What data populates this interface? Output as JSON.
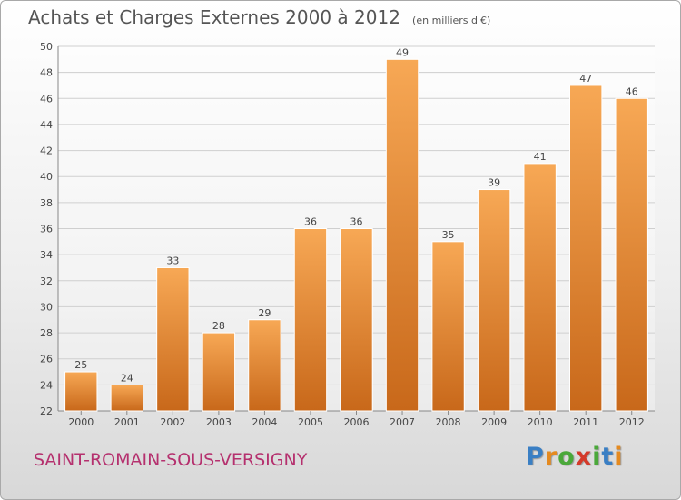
{
  "header": {
    "title": "Achats et Charges Externes 2000 à 2012",
    "unit": "(en milliers d'€)"
  },
  "footer": {
    "commune": "SAINT-ROMAIN-SOUS-VERSIGNY",
    "brand": "Proxiti",
    "brand_colors": [
      "#3a7fc4",
      "#e58a1f",
      "#4aa83a",
      "#d43a2a",
      "#4aa83a",
      "#3a7fc4",
      "#e58a1f"
    ]
  },
  "colors": {
    "bar_light": "#f7a855",
    "bar_dark": "#c8681a",
    "grid": "#cfcfcf",
    "axis": "#888888",
    "text": "#444444"
  },
  "chart_data": {
    "type": "bar",
    "title": "Achats et Charges Externes 2000 à 2012",
    "subtitle": "(en milliers d'€)",
    "categories": [
      "2000",
      "2001",
      "2002",
      "2003",
      "2004",
      "2005",
      "2006",
      "2007",
      "2008",
      "2009",
      "2010",
      "2011",
      "2012"
    ],
    "values": [
      25,
      24,
      33,
      28,
      29,
      36,
      36,
      49,
      35,
      39,
      41,
      47,
      46
    ],
    "ylim": [
      22,
      50
    ],
    "yticks": [
      22,
      24,
      26,
      28,
      30,
      32,
      34,
      36,
      38,
      40,
      42,
      44,
      46,
      48,
      50
    ],
    "grid": true
  }
}
